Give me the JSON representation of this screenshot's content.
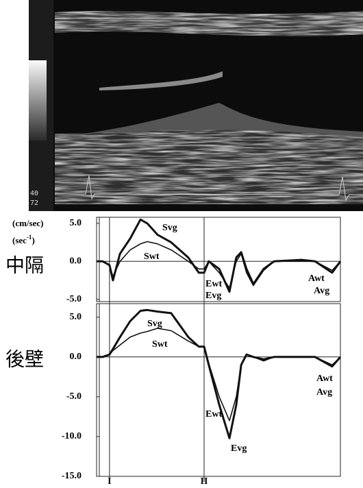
{
  "image_labels": [
    "40",
    "72"
  ],
  "chart_data": [
    {
      "type": "line",
      "title": "中隔",
      "unit_label": "(cm/sec)",
      "rate_unit": {
        "base": "(sec",
        "sup": "-1",
        "close": ")"
      },
      "x": [
        0,
        2.5,
        5.3,
        6.7,
        9.6,
        13.8,
        18,
        20.8,
        25,
        30.6,
        37.6,
        41.9,
        44.1,
        46,
        50.3,
        54.5,
        57.3,
        59.3,
        61.5,
        64.3,
        68.5,
        72.8,
        84,
        89.6,
        96.6,
        100
      ],
      "xlim": [
        0,
        100
      ],
      "ylim": [
        -5.3,
        5.8
      ],
      "yticks": [
        {
          "value": 5,
          "label": "5.0"
        },
        {
          "value": 0,
          "label": "0.0"
        },
        {
          "value": -5,
          "label": "-5.0"
        }
      ],
      "series": [
        {
          "name": "Svg",
          "color": "#111111",
          "line_width": 3,
          "values": [
            0,
            0,
            -0.5,
            -2.5,
            1,
            3,
            5.5,
            5,
            3.5,
            2.5,
            0.5,
            -1.5,
            -1.5,
            0,
            -1,
            -4,
            0.5,
            1.2,
            -1,
            -3,
            -1,
            0,
            0.2,
            0,
            -1.5,
            0
          ]
        },
        {
          "name": "Swt",
          "color": "#111111",
          "line_width": 1.6,
          "values": [
            0,
            0,
            -0.5,
            -2,
            0,
            1.5,
            2.3,
            2.6,
            2.3,
            1.5,
            0,
            -1,
            -1,
            0,
            -1.5,
            -3.5,
            0,
            1,
            -1.5,
            -3.2,
            -1.2,
            0,
            0,
            0,
            -1.2,
            0
          ]
        }
      ],
      "annotations": [
        "Svg",
        "Swt",
        "Ewt",
        "Evg",
        "Awt",
        "Avg"
      ]
    },
    {
      "type": "line",
      "title": "後壁",
      "x": [
        0,
        2.5,
        5.3,
        6.7,
        9.6,
        13.8,
        18,
        20.8,
        25,
        30.6,
        37.6,
        41.9,
        44.1,
        46,
        50.3,
        54.5,
        57.3,
        59.3,
        61.5,
        64.3,
        68.5,
        72.8,
        84,
        89.6,
        96.6,
        100
      ],
      "xlim": [
        0,
        100
      ],
      "ylim": [
        -15,
        6.7
      ],
      "yticks": [
        {
          "value": 5,
          "label": "5.0"
        },
        {
          "value": 0,
          "label": "0.0"
        },
        {
          "value": -5,
          "label": "-5.0"
        },
        {
          "value": -10,
          "label": "-10.0"
        },
        {
          "value": -15,
          "label": "-15.0"
        }
      ],
      "series": [
        {
          "name": "Svg",
          "color": "#111111",
          "line_width": 3,
          "values": [
            0,
            0,
            0.3,
            1,
            2.5,
            4.5,
            5.8,
            5.9,
            5.7,
            5.5,
            2.5,
            1.3,
            1.3,
            -1,
            -6,
            -10.2,
            -6,
            -1,
            0.3,
            0,
            -0.3,
            0,
            0,
            0,
            -1.2,
            0
          ]
        },
        {
          "name": "Swt",
          "color": "#111111",
          "line_width": 1.6,
          "values": [
            0,
            0,
            0.3,
            0.8,
            1.5,
            2.5,
            3,
            3.2,
            3.6,
            3.3,
            2,
            1.3,
            1.3,
            -0.8,
            -5,
            -8,
            -5,
            -1,
            0.3,
            0,
            -0.5,
            0,
            0,
            0,
            -1,
            0
          ]
        }
      ],
      "annotations": [
        "Svg",
        "Swt",
        "Ewt",
        "Evg",
        "Awt",
        "Avg"
      ],
      "markers": [
        {
          "x": 5.3,
          "label": "I"
        },
        {
          "x": 44.1,
          "label": "II"
        }
      ]
    }
  ]
}
